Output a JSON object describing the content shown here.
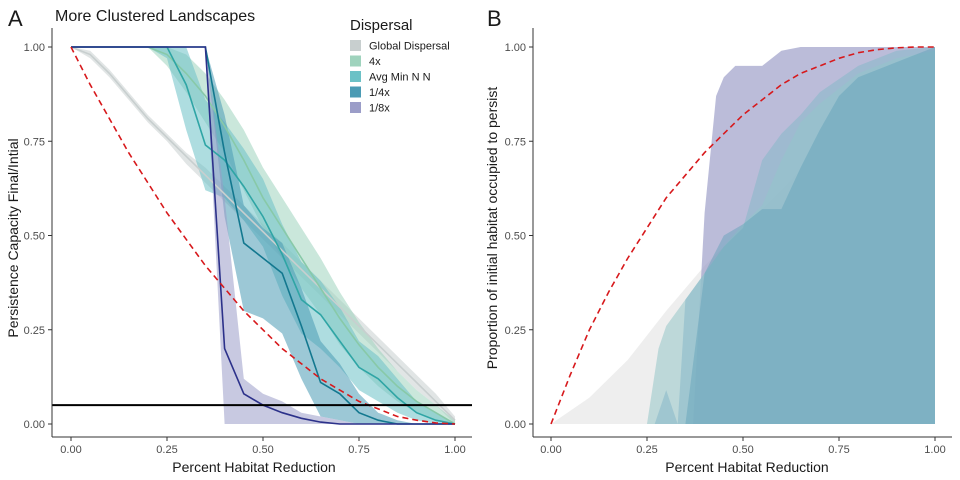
{
  "chart_data": [
    {
      "panel": "A",
      "type": "line",
      "title": "More Clustered Landscapes",
      "xlabel": "Percent Habitat Reduction",
      "ylabel": "Persistence Capacity Final/Intial",
      "xlim": [
        0,
        1
      ],
      "ylim": [
        0,
        1
      ],
      "xticks": [
        "0.00",
        "0.25",
        "0.50",
        "0.75",
        "1.00"
      ],
      "yticks": [
        "0.00",
        "0.25",
        "0.50",
        "0.75",
        "1.00"
      ],
      "grid": false,
      "legend": {
        "title": "Dispersal",
        "placement": "top-right",
        "entries": [
          "Global Dispersal",
          "4x",
          "Avg Min N N",
          "1/4x",
          "1/8x"
        ]
      },
      "hline": 0.05,
      "series": [
        {
          "name": "Global Dispersal",
          "color": "#c8cfcf",
          "fill": "#c8cfcf",
          "x": [
            0,
            0.05,
            0.1,
            0.15,
            0.2,
            0.25,
            0.3,
            0.35,
            0.4,
            0.45,
            0.5,
            0.55,
            0.6,
            0.65,
            0.7,
            0.75,
            0.8,
            0.85,
            0.9,
            0.95,
            1.0
          ],
          "values": [
            1.0,
            0.98,
            0.93,
            0.87,
            0.81,
            0.76,
            0.71,
            0.66,
            0.61,
            0.56,
            0.51,
            0.46,
            0.41,
            0.36,
            0.31,
            0.26,
            0.21,
            0.16,
            0.11,
            0.06,
            0.01
          ],
          "lower": [
            1.0,
            0.97,
            0.92,
            0.86,
            0.8,
            0.75,
            0.69,
            0.64,
            0.59,
            0.54,
            0.49,
            0.44,
            0.39,
            0.34,
            0.29,
            0.24,
            0.19,
            0.14,
            0.09,
            0.05,
            0.0
          ],
          "upper": [
            1.0,
            0.99,
            0.94,
            0.88,
            0.82,
            0.77,
            0.72,
            0.68,
            0.63,
            0.58,
            0.53,
            0.48,
            0.43,
            0.38,
            0.33,
            0.28,
            0.23,
            0.18,
            0.13,
            0.08,
            0.02
          ]
        },
        {
          "name": "4x",
          "color": "#88c9a8",
          "fill": "#9fd3bd",
          "x": [
            0,
            0.05,
            0.1,
            0.15,
            0.2,
            0.25,
            0.3,
            0.35,
            0.4,
            0.45,
            0.5,
            0.55,
            0.6,
            0.65,
            0.7,
            0.75,
            0.8,
            0.85,
            0.9,
            0.95,
            1.0
          ],
          "values": [
            1.0,
            1.0,
            1.0,
            1.0,
            1.0,
            0.98,
            0.93,
            0.87,
            0.79,
            0.7,
            0.6,
            0.52,
            0.44,
            0.36,
            0.28,
            0.21,
            0.15,
            0.1,
            0.06,
            0.03,
            0.0
          ],
          "lower": [
            1.0,
            1.0,
            1.0,
            1.0,
            1.0,
            0.95,
            0.88,
            0.8,
            0.72,
            0.62,
            0.52,
            0.44,
            0.36,
            0.29,
            0.21,
            0.15,
            0.1,
            0.06,
            0.03,
            0.01,
            0.0
          ],
          "upper": [
            1.0,
            1.0,
            1.0,
            1.0,
            1.0,
            1.0,
            0.98,
            0.93,
            0.86,
            0.78,
            0.68,
            0.6,
            0.52,
            0.44,
            0.35,
            0.27,
            0.2,
            0.14,
            0.09,
            0.05,
            0.01
          ]
        },
        {
          "name": "Avg Min N N",
          "color": "#2fa5a5",
          "fill": "#6cc1c6",
          "x": [
            0,
            0.05,
            0.1,
            0.15,
            0.2,
            0.25,
            0.3,
            0.35,
            0.4,
            0.45,
            0.5,
            0.55,
            0.6,
            0.65,
            0.7,
            0.75,
            0.8,
            0.85,
            0.9,
            0.95,
            1.0
          ],
          "values": [
            1.0,
            1.0,
            1.0,
            1.0,
            1.0,
            1.0,
            0.9,
            0.74,
            0.7,
            0.63,
            0.55,
            0.45,
            0.33,
            0.29,
            0.22,
            0.15,
            0.12,
            0.07,
            0.03,
            0.01,
            0.0
          ],
          "lower": [
            1.0,
            1.0,
            1.0,
            1.0,
            1.0,
            0.97,
            0.78,
            0.62,
            0.6,
            0.54,
            0.47,
            0.34,
            0.24,
            0.2,
            0.15,
            0.09,
            0.06,
            0.03,
            0.01,
            0.0,
            0.0
          ],
          "upper": [
            1.0,
            1.0,
            1.0,
            1.0,
            1.0,
            1.0,
            1.0,
            0.86,
            0.8,
            0.73,
            0.65,
            0.53,
            0.43,
            0.38,
            0.31,
            0.22,
            0.18,
            0.12,
            0.06,
            0.03,
            0.0
          ]
        },
        {
          "name": "1/4x",
          "color": "#13788f",
          "fill": "#4b9bb4",
          "x": [
            0,
            0.1,
            0.2,
            0.25,
            0.3,
            0.35,
            0.4,
            0.45,
            0.5,
            0.55,
            0.6,
            0.65,
            0.7,
            0.75,
            0.8,
            0.85,
            0.9,
            1.0
          ],
          "values": [
            1.0,
            1.0,
            1.0,
            1.0,
            1.0,
            1.0,
            0.72,
            0.48,
            0.44,
            0.4,
            0.26,
            0.11,
            0.08,
            0.03,
            0.01,
            0.0,
            0.0,
            0.0
          ],
          "lower": [
            1.0,
            1.0,
            1.0,
            1.0,
            1.0,
            1.0,
            0.55,
            0.3,
            0.28,
            0.24,
            0.12,
            0.02,
            0.01,
            0.0,
            0.0,
            0.0,
            0.0,
            0.0
          ],
          "upper": [
            1.0,
            1.0,
            1.0,
            1.0,
            1.0,
            1.0,
            0.82,
            0.58,
            0.52,
            0.48,
            0.36,
            0.22,
            0.16,
            0.08,
            0.03,
            0.01,
            0.0,
            0.0
          ]
        },
        {
          "name": "1/8x",
          "color": "#2c318a",
          "fill": "#9b9dc8",
          "x": [
            0,
            0.25,
            0.3,
            0.35,
            0.4,
            0.45,
            0.5,
            0.55,
            0.6,
            0.65,
            0.7,
            0.75,
            0.8,
            1.0
          ],
          "values": [
            1.0,
            1.0,
            1.0,
            1.0,
            0.2,
            0.08,
            0.05,
            0.03,
            0.015,
            0.005,
            0.0,
            0.0,
            0.0,
            0.0
          ],
          "lower": [
            1.0,
            1.0,
            1.0,
            1.0,
            0.0,
            0.0,
            0.0,
            0.0,
            0.0,
            0.0,
            0.0,
            0.0,
            0.0,
            0.0
          ],
          "upper": [
            1.0,
            1.0,
            1.0,
            1.0,
            0.6,
            0.12,
            0.08,
            0.06,
            0.03,
            0.02,
            0.01,
            0.0,
            0.0,
            0.0
          ]
        }
      ],
      "reference_curve": {
        "color": "#d7191c",
        "style": "dashed",
        "x": [
          0,
          0.05,
          0.1,
          0.15,
          0.2,
          0.25,
          0.3,
          0.35,
          0.4,
          0.45,
          0.5,
          0.55,
          0.6,
          0.65,
          0.7,
          0.75,
          0.8,
          0.85,
          0.9,
          0.95,
          1.0
        ],
        "values": [
          1.0,
          0.9,
          0.81,
          0.72,
          0.64,
          0.56,
          0.49,
          0.42,
          0.36,
          0.3,
          0.25,
          0.2,
          0.16,
          0.12,
          0.09,
          0.06,
          0.04,
          0.02,
          0.01,
          0.003,
          0.0
        ]
      }
    },
    {
      "panel": "B",
      "type": "area",
      "title": "",
      "xlabel": "Percent Habitat Reduction",
      "ylabel": "Proportion of initial habitat occupied to persist",
      "xlim": [
        0,
        1
      ],
      "ylim": [
        0,
        1
      ],
      "xticks": [
        "0.00",
        "0.25",
        "0.50",
        "0.75",
        "1.00"
      ],
      "yticks": [
        "0.00",
        "0.25",
        "0.50",
        "0.75",
        "1.00"
      ],
      "grid": false,
      "series": [
        {
          "color": "#ebebeb",
          "opacity": 0.85,
          "x": [
            0,
            0.1,
            0.2,
            0.3,
            0.4,
            0.5,
            0.6,
            0.7,
            0.8,
            0.9,
            1.0
          ],
          "lower": [
            0,
            0,
            0,
            0,
            0,
            0,
            0,
            0,
            0,
            0,
            0
          ],
          "upper": [
            0,
            0.07,
            0.17,
            0.3,
            0.42,
            0.52,
            0.62,
            0.73,
            0.83,
            0.93,
            0.98
          ]
        },
        {
          "color": "#9ea0c9",
          "opacity": 0.7,
          "x": [
            0.37,
            0.4,
            0.43,
            0.45,
            0.48,
            0.5,
            0.55,
            0.6,
            0.65,
            0.7,
            0.75,
            0.8,
            0.9,
            1.0
          ],
          "lower": [
            0,
            0,
            0,
            0,
            0,
            0,
            0,
            0,
            0,
            0,
            0,
            0,
            0,
            0
          ],
          "upper": [
            0,
            0.56,
            0.87,
            0.92,
            0.95,
            0.95,
            0.95,
            0.99,
            1.0,
            1.0,
            1.0,
            1.0,
            1.0,
            1.0
          ]
        },
        {
          "color": "#a8cfd0",
          "opacity": 0.7,
          "x": [
            0.25,
            0.28,
            0.3,
            0.35,
            0.4,
            0.45,
            0.5,
            0.55,
            0.6,
            0.65,
            0.7,
            0.8,
            0.9,
            1.0
          ],
          "lower": [
            0,
            0,
            0,
            0,
            0,
            0,
            0,
            0,
            0,
            0,
            0,
            0,
            0,
            0
          ],
          "upper": [
            0,
            0.2,
            0.26,
            0.33,
            0.4,
            0.47,
            0.53,
            0.58,
            0.7,
            0.8,
            0.85,
            0.93,
            0.97,
            0.99
          ]
        },
        {
          "color": "#86b8c8",
          "opacity": 0.55,
          "x": [
            0.27,
            0.3,
            0.33,
            0.35,
            0.4,
            0.45,
            0.5,
            0.55,
            0.6,
            0.65,
            0.7,
            0.8,
            0.9,
            1.0
          ],
          "lower": [
            0,
            0,
            0,
            0,
            0,
            0,
            0,
            0,
            0,
            0,
            0,
            0,
            0,
            0
          ],
          "upper": [
            0,
            0.09,
            0.0,
            0.33,
            0.4,
            0.47,
            0.52,
            0.7,
            0.77,
            0.82,
            0.88,
            0.95,
            0.99,
            1.0
          ]
        },
        {
          "color": "#5f9fb7",
          "opacity": 0.45,
          "x": [
            0.35,
            0.4,
            0.45,
            0.5,
            0.55,
            0.6,
            0.65,
            0.7,
            0.75,
            0.8,
            0.9,
            1.0
          ],
          "lower": [
            0,
            0,
            0,
            0,
            0,
            0,
            0,
            0,
            0,
            0,
            0,
            0
          ],
          "upper": [
            0,
            0.4,
            0.5,
            0.53,
            0.57,
            0.57,
            0.68,
            0.78,
            0.87,
            0.92,
            0.96,
            1.0
          ]
        }
      ],
      "reference_curve": {
        "color": "#d7191c",
        "style": "dashed",
        "x": [
          0,
          0.05,
          0.1,
          0.15,
          0.2,
          0.25,
          0.3,
          0.35,
          0.4,
          0.45,
          0.5,
          0.55,
          0.6,
          0.65,
          0.7,
          0.75,
          0.8,
          0.85,
          0.9,
          0.95,
          1.0
        ],
        "values": [
          0,
          0.13,
          0.25,
          0.35,
          0.44,
          0.52,
          0.6,
          0.66,
          0.72,
          0.77,
          0.82,
          0.86,
          0.9,
          0.93,
          0.95,
          0.97,
          0.985,
          0.993,
          0.998,
          1.0,
          1.0
        ]
      }
    }
  ]
}
